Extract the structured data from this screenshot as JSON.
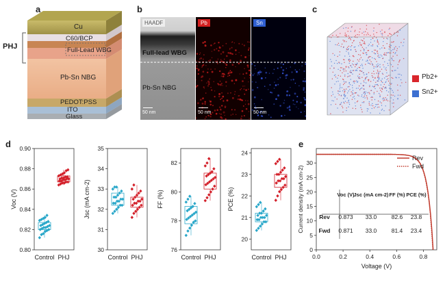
{
  "panel_labels": {
    "a": "a",
    "b": "b",
    "c": "c",
    "d": "d",
    "e": "e"
  },
  "panel_a": {
    "phj_label": "PHJ",
    "layers": {
      "cu": "Cu",
      "c60_bcp": "C60/BCP",
      "wbg": "Full-Lead WBG",
      "nbg": "Pb-Sn NBG",
      "pedot": "PEDOT:PSS",
      "ito": "ITO",
      "glass": "Glass"
    }
  },
  "panel_b": {
    "tabs": {
      "haadf": "HAADF",
      "pb": "Pb",
      "sn": "Sn"
    },
    "regions": {
      "wbg": "Full-lead WBG",
      "nbg": "Pb-Sn NBG"
    },
    "scalebars": [
      "50 nm",
      "50 nm",
      "50 nm"
    ]
  },
  "panel_c": {
    "legend": [
      {
        "label": "Pb2+",
        "color": "#d9262c"
      },
      {
        "label": "Sn2+",
        "color": "#3c6fd1"
      }
    ]
  },
  "chart_data": [
    {
      "type": "scatter",
      "title": "",
      "ylabel": "Voc (V)",
      "categories": [
        "Control",
        "PHJ"
      ],
      "ylim": [
        0.8,
        0.9
      ],
      "yticks": [
        "0.80",
        "0.82",
        "0.84",
        "0.86",
        "0.88",
        "0.90"
      ],
      "series": [
        {
          "values": [
            0.812,
            0.815,
            0.816,
            0.818,
            0.819,
            0.82,
            0.82,
            0.821,
            0.822,
            0.822,
            0.823,
            0.824,
            0.824,
            0.825,
            0.826,
            0.827,
            0.828,
            0.829,
            0.83,
            0.831,
            0.832,
            0.834
          ]
        },
        {
          "values": [
            0.864,
            0.865,
            0.866,
            0.866,
            0.867,
            0.867,
            0.868,
            0.868,
            0.869,
            0.869,
            0.87,
            0.87,
            0.87,
            0.871,
            0.871,
            0.872,
            0.872,
            0.873,
            0.874,
            0.875,
            0.876,
            0.878,
            0.879
          ]
        }
      ],
      "box": [
        {
          "q1": 0.82,
          "q3": 0.827
        },
        {
          "q1": 0.867,
          "q3": 0.873
        }
      ]
    },
    {
      "type": "scatter",
      "title": "",
      "ylabel": "Jsc (mA cm-2)",
      "categories": [
        "Control",
        "PHJ"
      ],
      "ylim": [
        30,
        35
      ],
      "yticks": [
        "30",
        "31",
        "32",
        "33",
        "34",
        "35"
      ],
      "series": [
        {
          "values": [
            31.8,
            31.9,
            32.0,
            32.1,
            32.2,
            32.2,
            32.3,
            32.3,
            32.4,
            32.4,
            32.5,
            32.5,
            32.6,
            32.6,
            32.7,
            32.8,
            32.9,
            33.0,
            33.1,
            33.1
          ]
        },
        {
          "values": [
            31.6,
            31.8,
            31.9,
            32.0,
            32.1,
            32.2,
            32.2,
            32.3,
            32.3,
            32.4,
            32.4,
            32.5,
            32.5,
            32.6,
            32.7,
            32.8,
            32.9,
            33.0,
            33.2
          ]
        }
      ],
      "box": [
        {
          "q1": 32.2,
          "q3": 32.8
        },
        {
          "q1": 32.1,
          "q3": 32.6
        }
      ]
    },
    {
      "type": "scatter",
      "title": "",
      "ylabel": "FF (%)",
      "categories": [
        "Control",
        "PHJ"
      ],
      "ylim": [
        76,
        83
      ],
      "yticks": [
        "76",
        "78",
        "80",
        "82"
      ],
      "series": [
        {
          "values": [
            77.0,
            77.3,
            77.5,
            77.7,
            77.9,
            78.0,
            78.1,
            78.2,
            78.3,
            78.4,
            78.5,
            78.6,
            78.7,
            78.8,
            78.9,
            79.0,
            79.2,
            79.3,
            79.5,
            79.7
          ]
        },
        {
          "values": [
            79.4,
            79.6,
            79.8,
            80.0,
            80.2,
            80.4,
            80.5,
            80.6,
            80.7,
            80.8,
            80.9,
            81.0,
            81.1,
            81.2,
            81.3,
            81.4,
            81.6,
            81.8,
            82.0,
            82.3
          ]
        }
      ],
      "box": [
        {
          "q1": 77.8,
          "q3": 79.0
        },
        {
          "q1": 80.2,
          "q3": 81.3
        }
      ]
    },
    {
      "type": "scatter",
      "title": "",
      "ylabel": "PCE (%)",
      "categories": [
        "Control",
        "PHJ"
      ],
      "ylim": [
        19.5,
        24.2
      ],
      "yticks": [
        "20",
        "21",
        "22",
        "23",
        "24"
      ],
      "series": [
        {
          "values": [
            20.4,
            20.5,
            20.6,
            20.7,
            20.8,
            20.8,
            20.9,
            20.9,
            21.0,
            21.0,
            21.0,
            21.1,
            21.1,
            21.2,
            21.2,
            21.3,
            21.4,
            21.5,
            21.6,
            21.7
          ]
        },
        {
          "values": [
            21.8,
            22.0,
            22.2,
            22.3,
            22.4,
            22.5,
            22.6,
            22.7,
            22.7,
            22.8,
            22.8,
            22.9,
            23.0,
            23.0,
            23.1,
            23.2,
            23.3,
            23.5,
            23.6,
            23.7
          ]
        }
      ],
      "box": [
        {
          "q1": 20.8,
          "q3": 21.2
        },
        {
          "q1": 22.4,
          "q3": 23.0
        }
      ]
    },
    {
      "type": "line",
      "title": "",
      "xlabel": "Voltage (V)",
      "ylabel": "Current density (mA cm-2)",
      "xlim": [
        0.0,
        0.9
      ],
      "ylim": [
        0,
        35
      ],
      "xticks": [
        "0.0",
        "0.2",
        "0.4",
        "0.6",
        "0.8"
      ],
      "yticks": [
        "0",
        "5",
        "10",
        "15",
        "20",
        "25",
        "30"
      ],
      "series": [
        {
          "name": "Rev",
          "color": "#c0392b",
          "style": "solid",
          "voc": 0.873,
          "jsc": 33.0
        },
        {
          "name": "Fwd",
          "color": "#c0392b",
          "style": "dotted",
          "voc": 0.871,
          "jsc": 33.0
        }
      ],
      "table": {
        "headers": [
          "",
          "Voc (V)",
          "Jsc (mA cm-2)",
          "FF (%)",
          "PCE (%)"
        ],
        "rows": [
          [
            "Rev",
            "0.873",
            "33.0",
            "82.6",
            "23.8"
          ],
          [
            "Fwd",
            "0.871",
            "33.0",
            "81.4",
            "23.4"
          ]
        ]
      }
    }
  ],
  "colors": {
    "control": "#29a7c9",
    "phj": "#d3202a"
  }
}
